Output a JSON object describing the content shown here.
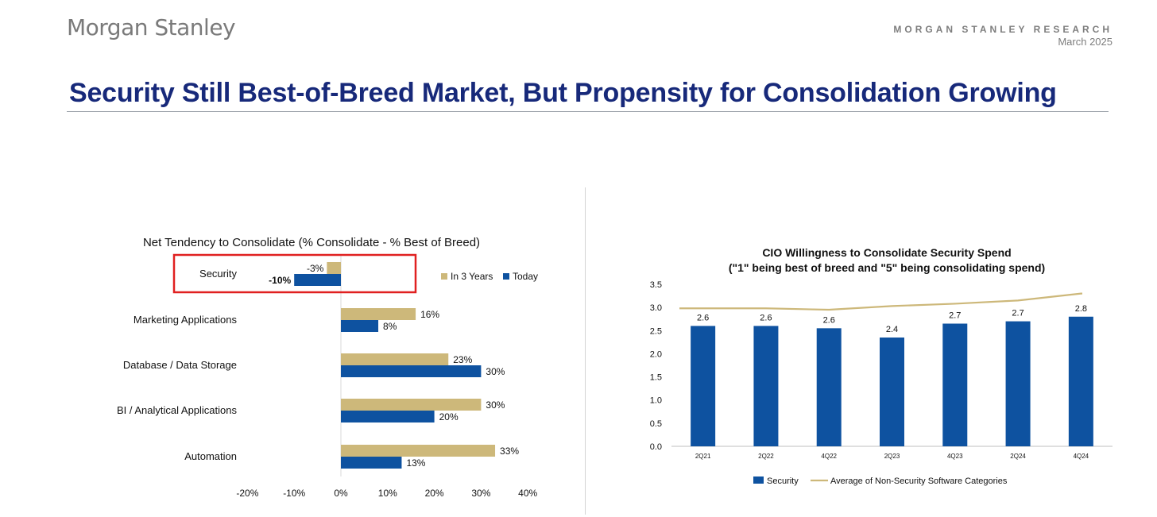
{
  "header": {
    "logo_text": "Morgan Stanley",
    "research_label": "MORGAN STANLEY RESEARCH",
    "date": "March 2025",
    "headline": "Security Still Best-of-Breed Market, But Propensity for Consolidation Growing"
  },
  "colors": {
    "navy": "#17297a",
    "today_blue": "#0e52a0",
    "in3years_gold": "#cdb87a",
    "highlight_red": "#e02020",
    "avg_line": "#cdb87a"
  },
  "chart_data": [
    {
      "type": "bar",
      "orientation": "horizontal",
      "title": "Net Tendency to Consolidate (% Consolidate - % Best of Breed)",
      "categories": [
        "Security",
        "Marketing Applications",
        "Database / Data Storage",
        "BI / Analytical Applications",
        "Automation"
      ],
      "series": [
        {
          "name": "In 3 Years",
          "color": "#cdb87a",
          "values": [
            -3,
            16,
            23,
            30,
            33
          ]
        },
        {
          "name": "Today",
          "color": "#0e52a0",
          "values": [
            -10,
            8,
            30,
            20,
            13
          ]
        }
      ],
      "data_labels": {
        "In 3 Years": [
          "-3%",
          "16%",
          "23%",
          "30%",
          "33%"
        ],
        "Today": [
          "-10%",
          "8%",
          "30%",
          "20%",
          "13%"
        ]
      },
      "xlim": [
        -20,
        40
      ],
      "xticks": [
        "-20%",
        "-10%",
        "0%",
        "10%",
        "20%",
        "30%",
        "40%"
      ],
      "legend": "top-right",
      "highlighted_category": "Security"
    },
    {
      "type": "bar",
      "title": "CIO Willingness to Consolidate Security Spend",
      "subtitle": "(\"1\" being best of breed and \"5\"  being consolidating spend)",
      "categories": [
        "2Q21",
        "2Q22",
        "4Q22",
        "2Q23",
        "4Q23",
        "2Q24",
        "4Q24"
      ],
      "series": [
        {
          "name": "Security",
          "type": "bar",
          "color": "#0e52a0",
          "values": [
            2.6,
            2.6,
            2.55,
            2.35,
            2.65,
            2.7,
            2.8
          ]
        },
        {
          "name": "Average of Non-Security Software Categories",
          "type": "line",
          "color": "#cdb87a",
          "values": [
            2.98,
            2.98,
            2.95,
            3.03,
            3.08,
            3.15,
            3.3
          ]
        }
      ],
      "data_labels": [
        "2.6",
        "2.6",
        "2.6",
        "2.4",
        "2.7",
        "2.7",
        "2.8"
      ],
      "ylim": [
        0,
        3.5
      ],
      "yticks": [
        "0.0",
        "0.5",
        "1.0",
        "1.5",
        "2.0",
        "2.5",
        "3.0",
        "3.5"
      ],
      "legend": "bottom"
    }
  ]
}
